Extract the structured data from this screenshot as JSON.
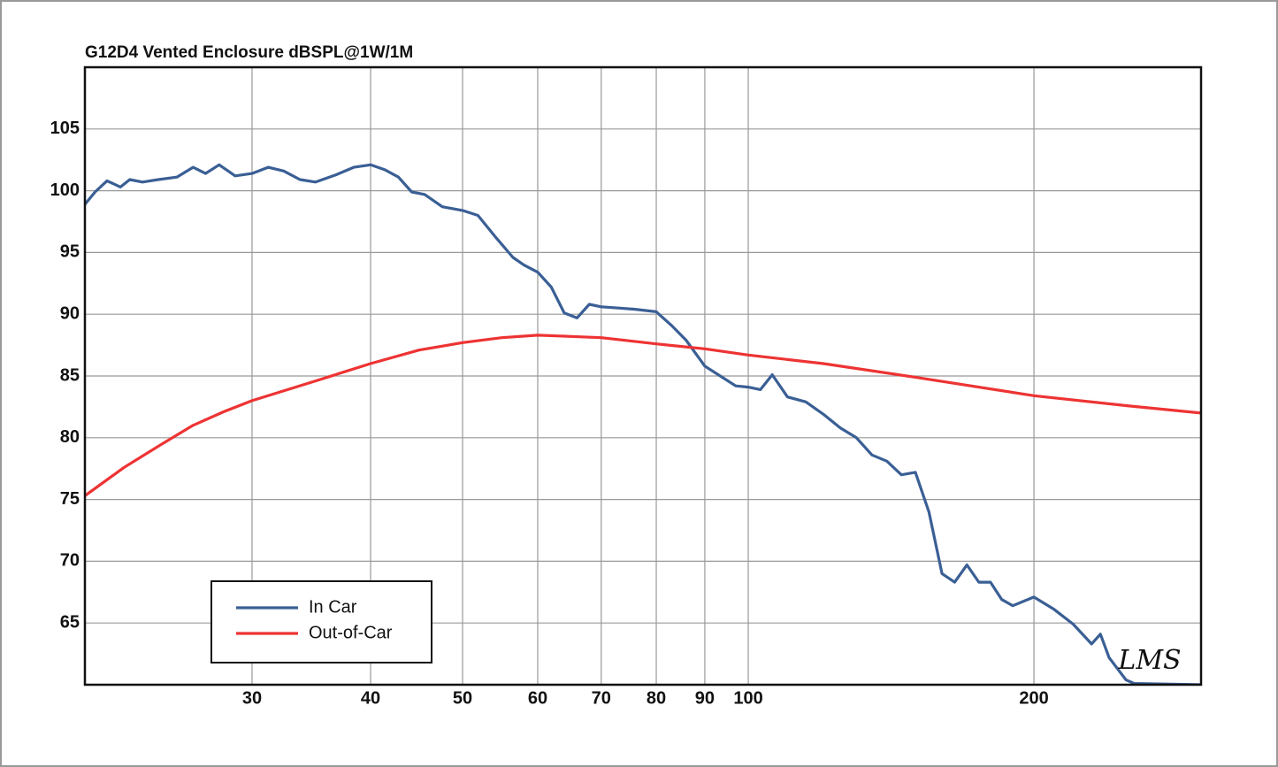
{
  "chart_data": {
    "type": "line",
    "title": "G12D4 Vented Enclosure dBSPL@1W/1M",
    "xscale": "log",
    "xlim": [
      20,
      300
    ],
    "ylim": [
      60,
      110
    ],
    "xticks": [
      30,
      40,
      50,
      60,
      70,
      80,
      90,
      100,
      200
    ],
    "yticks": [
      65,
      70,
      75,
      80,
      85,
      90,
      95,
      100,
      105
    ],
    "grid": true,
    "legend": "lower left",
    "annotation": "LMS",
    "series": [
      {
        "name": "In Car",
        "color": "#3a5f95",
        "x": [
          20,
          20.5,
          21.1,
          21.8,
          22.3,
          23,
          23.9,
          25,
          26,
          26.8,
          27.7,
          28.8,
          30,
          31.2,
          32.4,
          33.7,
          35,
          36.8,
          38.4,
          40,
          41.4,
          42.8,
          44.2,
          45.6,
          47.6,
          50,
          51.9,
          54.1,
          56.5,
          58,
          60,
          62,
          64,
          66,
          68,
          70,
          73,
          76,
          80,
          83,
          86,
          90,
          93,
          97,
          100,
          103,
          106,
          110,
          115,
          120,
          125,
          130,
          135,
          140,
          145,
          150,
          155,
          160,
          165,
          170,
          175,
          180,
          185,
          190,
          200,
          210,
          220,
          230,
          235,
          240,
          250,
          255,
          300
        ],
        "values": [
          98.9,
          99.9,
          100.8,
          100.3,
          100.9,
          100.7,
          100.9,
          101.1,
          101.9,
          101.4,
          102.1,
          101.2,
          101.4,
          101.9,
          101.6,
          100.9,
          100.7,
          101.3,
          101.9,
          102.1,
          101.7,
          101.1,
          99.9,
          99.7,
          98.7,
          98.4,
          98.0,
          96.3,
          94.6,
          94.0,
          93.4,
          92.2,
          90.1,
          89.7,
          90.8,
          90.6,
          90.5,
          90.4,
          90.2,
          89.1,
          87.9,
          85.8,
          85.1,
          84.2,
          84.1,
          83.9,
          85.1,
          83.3,
          82.9,
          81.9,
          80.8,
          80.0,
          78.6,
          78.1,
          77.0,
          77.2,
          74.0,
          69.0,
          68.3,
          69.7,
          68.3,
          68.3,
          66.9,
          66.4,
          67.1,
          66.1,
          64.9,
          63.3,
          64.1,
          62.2,
          60.4,
          60.1,
          60
        ]
      },
      {
        "name": "Out-of-Car",
        "color": "#ee3333",
        "x": [
          20,
          22,
          24,
          26,
          28,
          30,
          35,
          40,
          45,
          50,
          55,
          60,
          65,
          70,
          80,
          90,
          100,
          120,
          150,
          200,
          250,
          300
        ],
        "values": [
          75.3,
          77.6,
          79.4,
          81.0,
          82.1,
          83.0,
          84.6,
          86.0,
          87.1,
          87.7,
          88.1,
          88.3,
          88.2,
          88.1,
          87.6,
          87.2,
          86.7,
          86.0,
          84.9,
          83.4,
          82.6,
          82.0
        ]
      }
    ]
  }
}
